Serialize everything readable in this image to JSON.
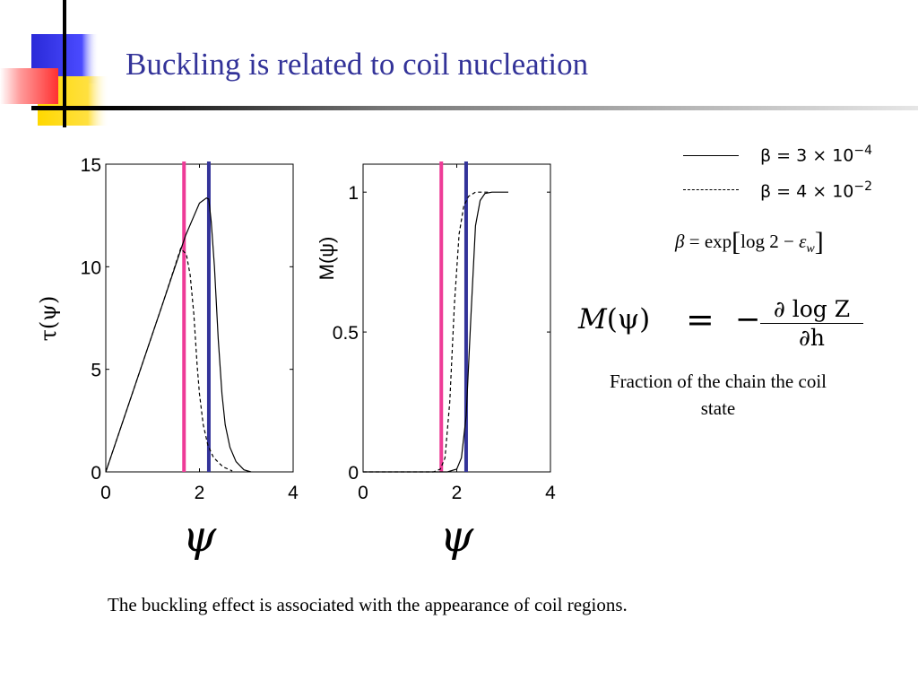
{
  "slide": {
    "title": "Buckling is related to coil nucleation",
    "caption": "Fraction of the chain the coil state",
    "footnote": "The buckling effect is associated with the appearance of coil regions."
  },
  "legend": [
    {
      "style": "solid",
      "label_prefix": "β = 3 × 10",
      "label_exp": "−4"
    },
    {
      "style": "dashed",
      "label_prefix": "β = 4 × 10",
      "label_exp": "−2"
    }
  ],
  "beta_formula": {
    "lhs": "β",
    "eq": "=",
    "func": "exp",
    "open": "[",
    "body": "log 2 − ",
    "eps": "ε",
    "eps_sub": "w",
    "close": "]"
  },
  "m_formula": {
    "lhs_func": "M",
    "lhs_arg": "(ψ)",
    "eq": "=",
    "minus": "−",
    "numerator": "∂ log Z",
    "denominator": "∂h"
  },
  "colors": {
    "title": "#333399",
    "marker_pink": "#ee3b97",
    "marker_blue": "#333399",
    "logo_blue": "#2a2ad8",
    "logo_red": "#ff3333",
    "logo_yellow": "#ffd800"
  },
  "chart_data": [
    {
      "type": "line",
      "ylabel": "τ(ψ)",
      "xlabel": "ψ",
      "xlim": [
        0,
        4
      ],
      "ylim": [
        0,
        15
      ],
      "xticks": [
        0,
        2,
        4
      ],
      "yticks": [
        0,
        5,
        10,
        15
      ],
      "vlines": [
        {
          "x": 1.67,
          "color": "#ee3b97"
        },
        {
          "x": 2.2,
          "color": "#333399"
        }
      ],
      "series": [
        {
          "style": "solid",
          "points": [
            [
              0,
              0
            ],
            [
              1.2,
              8.1
            ],
            [
              1.7,
              11.5
            ],
            [
              2.0,
              13.1
            ],
            [
              2.15,
              13.35
            ],
            [
              2.2,
              13.3
            ],
            [
              2.25,
              12.2
            ],
            [
              2.32,
              10.0
            ],
            [
              2.4,
              6.5
            ],
            [
              2.48,
              3.8
            ],
            [
              2.55,
              2.3
            ],
            [
              2.65,
              1.2
            ],
            [
              2.78,
              0.5
            ],
            [
              2.95,
              0.1
            ],
            [
              3.1,
              0.0
            ]
          ]
        },
        {
          "style": "dashed",
          "points": [
            [
              0,
              0
            ],
            [
              1.2,
              8.1
            ],
            [
              1.6,
              10.9
            ],
            [
              1.72,
              10.6
            ],
            [
              1.8,
              9.6
            ],
            [
              1.88,
              7.7
            ],
            [
              1.95,
              5.2
            ],
            [
              2.0,
              3.8
            ],
            [
              2.08,
              2.3
            ],
            [
              2.18,
              1.3
            ],
            [
              2.3,
              0.7
            ],
            [
              2.5,
              0.25
            ],
            [
              2.7,
              0.05
            ]
          ]
        }
      ]
    },
    {
      "type": "line",
      "ylabel": "M(ψ)",
      "xlabel": "ψ",
      "xlim": [
        0,
        4
      ],
      "ylim": [
        0,
        1.1
      ],
      "xticks": [
        0,
        2,
        4
      ],
      "yticks": [
        0,
        0.5,
        1
      ],
      "vlines": [
        {
          "x": 1.67,
          "color": "#ee3b97"
        },
        {
          "x": 2.2,
          "color": "#333399"
        }
      ],
      "series": [
        {
          "style": "solid",
          "points": [
            [
              0,
              0
            ],
            [
              1.8,
              0.0
            ],
            [
              2.0,
              0.01
            ],
            [
              2.1,
              0.05
            ],
            [
              2.2,
              0.2
            ],
            [
              2.3,
              0.55
            ],
            [
              2.4,
              0.88
            ],
            [
              2.5,
              0.97
            ],
            [
              2.6,
              0.995
            ],
            [
              2.75,
              1.0
            ],
            [
              3.1,
              1.0
            ]
          ]
        },
        {
          "style": "dashed",
          "points": [
            [
              0,
              0
            ],
            [
              1.5,
              0.0
            ],
            [
              1.65,
              0.01
            ],
            [
              1.75,
              0.05
            ],
            [
              1.85,
              0.25
            ],
            [
              1.95,
              0.6
            ],
            [
              2.05,
              0.85
            ],
            [
              2.15,
              0.95
            ],
            [
              2.25,
              0.985
            ],
            [
              2.4,
              1.0
            ],
            [
              2.7,
              1.0
            ]
          ]
        }
      ]
    }
  ]
}
